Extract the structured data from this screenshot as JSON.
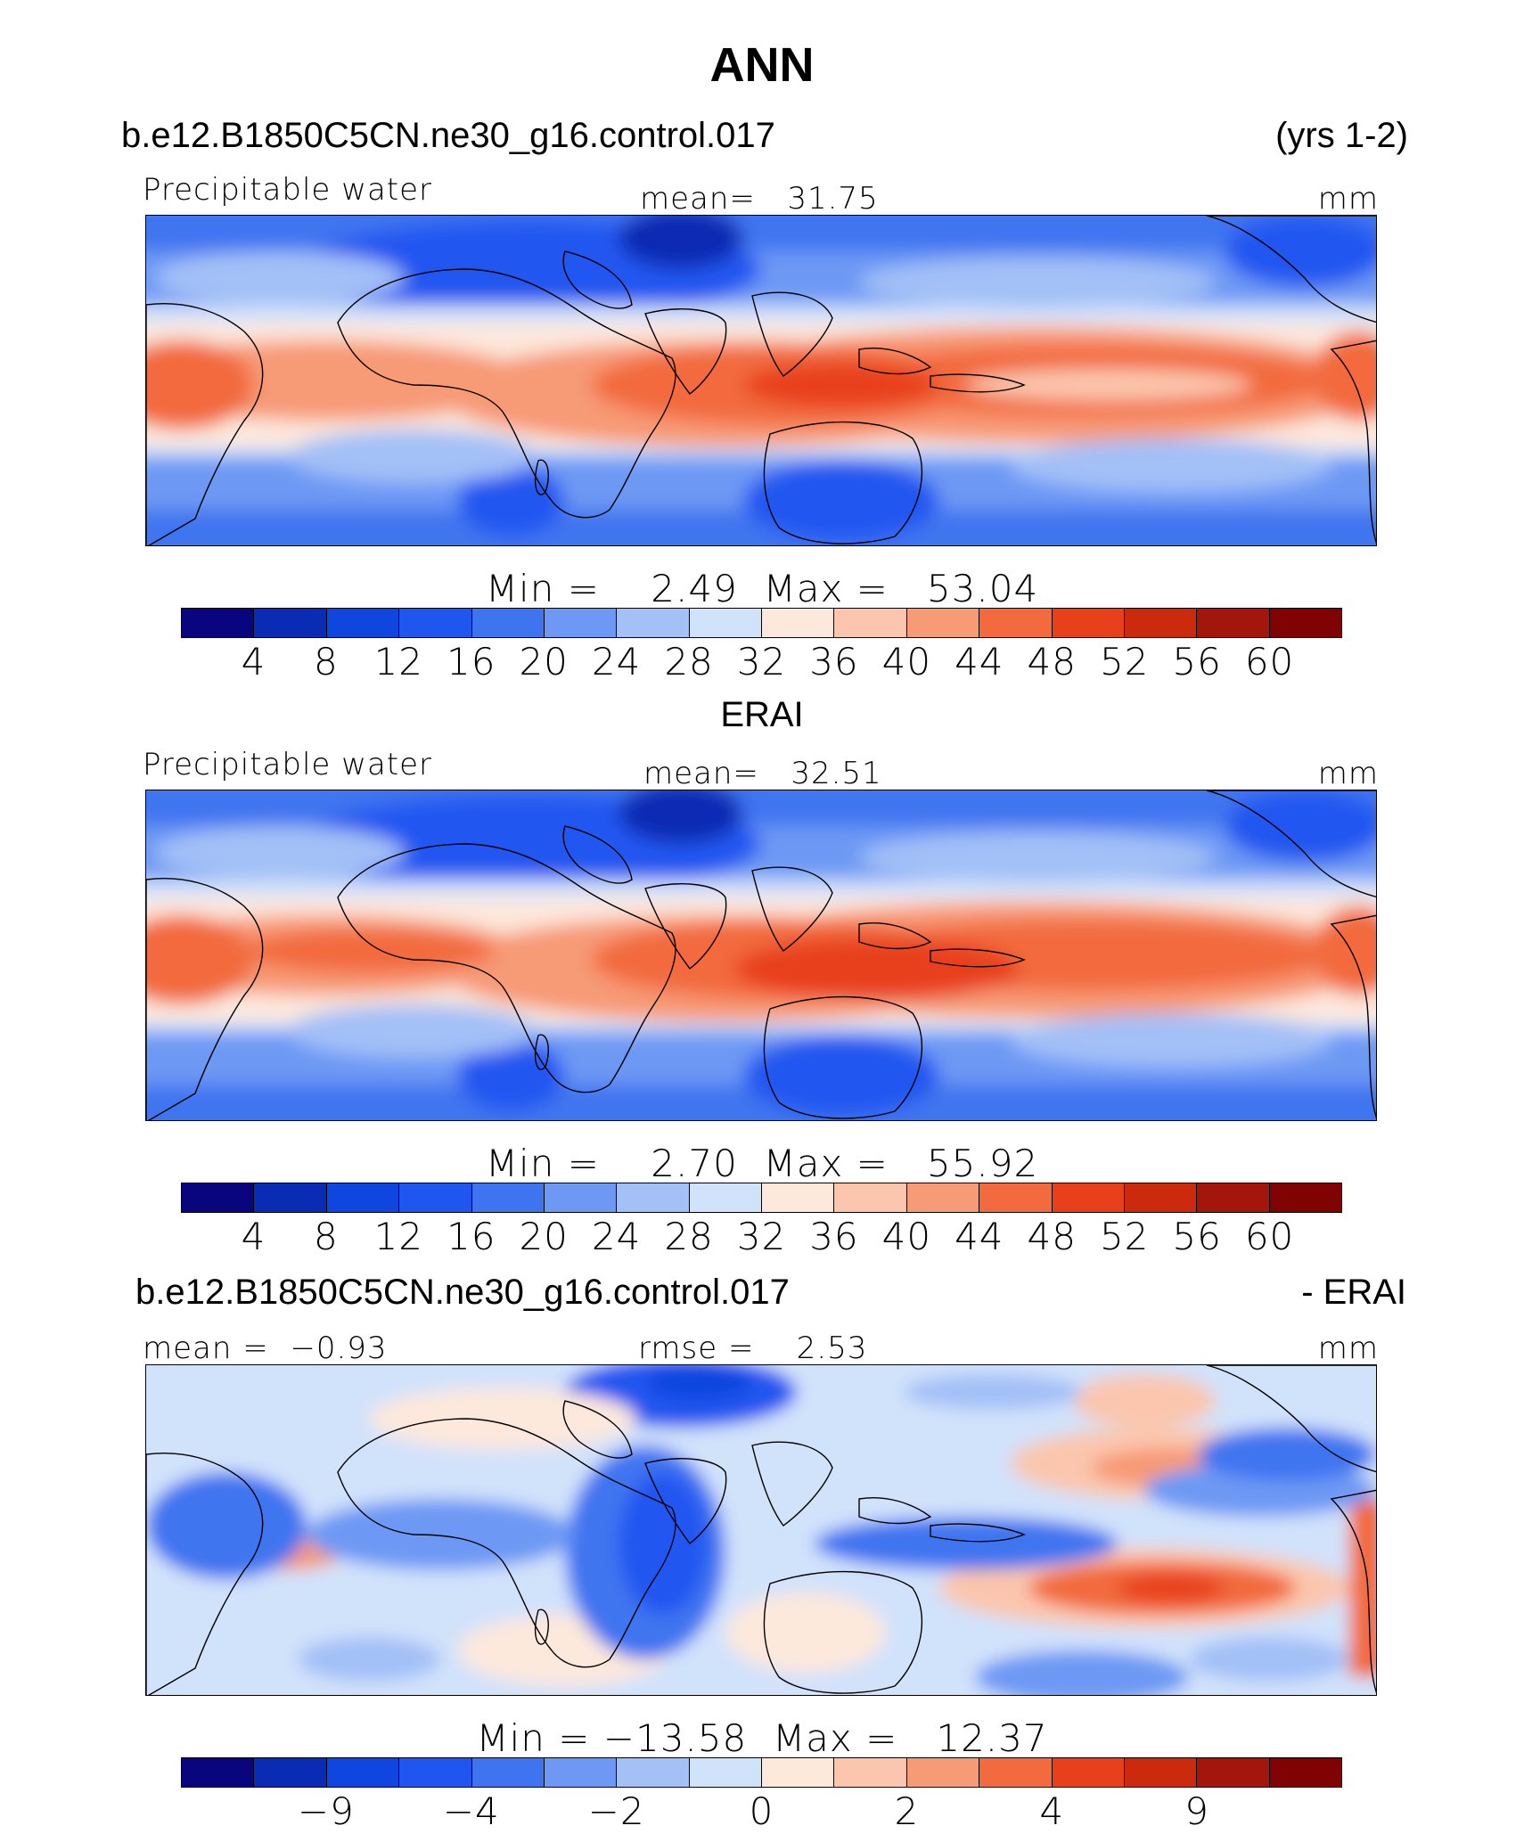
{
  "title": "ANN",
  "case_name": "b.e12.B1850C5CN.ne30_g16.control.017",
  "years": "(yrs 1-2)",
  "colors": [
    "#08057f",
    "#0a2cb4",
    "#0f46df",
    "#2056f0",
    "#3f74f0",
    "#6d99f4",
    "#a3c0f7",
    "#d1e2fb",
    "#fde8dc",
    "#fbc6ad",
    "#f79a76",
    "#f26a3e",
    "#e8401a",
    "#cc2a0d",
    "#a4160c",
    "#800202"
  ],
  "panels": [
    {
      "header_left": "Precipitable water",
      "header_mid": "mean=   31.75",
      "header_right": "mm",
      "stats": "Min =    2.49  Max =   53.04",
      "ticks": [
        "4",
        "8",
        "12",
        "16",
        "20",
        "24",
        "28",
        "32",
        "36",
        "40",
        "44",
        "48",
        "52",
        "56",
        "60"
      ],
      "kind": "model"
    },
    {
      "section_title": "ERAI",
      "header_left": "Precipitable water",
      "header_mid": "mean=   32.51",
      "header_right": "mm",
      "stats": "Min =    2.70  Max =   55.92",
      "ticks": [
        "4",
        "8",
        "12",
        "16",
        "20",
        "24",
        "28",
        "32",
        "36",
        "40",
        "44",
        "48",
        "52",
        "56",
        "60"
      ],
      "kind": "obs"
    },
    {
      "section_title_left": "b.e12.B1850C5CN.ne30_g16.control.017",
      "section_title_right": "- ERAI",
      "header_left": "mean =  −0.93",
      "header_mid": "rmse =    2.53",
      "header_right": "mm",
      "stats": "Min = −13.58  Max =   12.37",
      "ticks": [
        "−9",
        "−4",
        "−2",
        "0",
        "2",
        "4",
        "9"
      ],
      "kind": "diff"
    }
  ]
}
